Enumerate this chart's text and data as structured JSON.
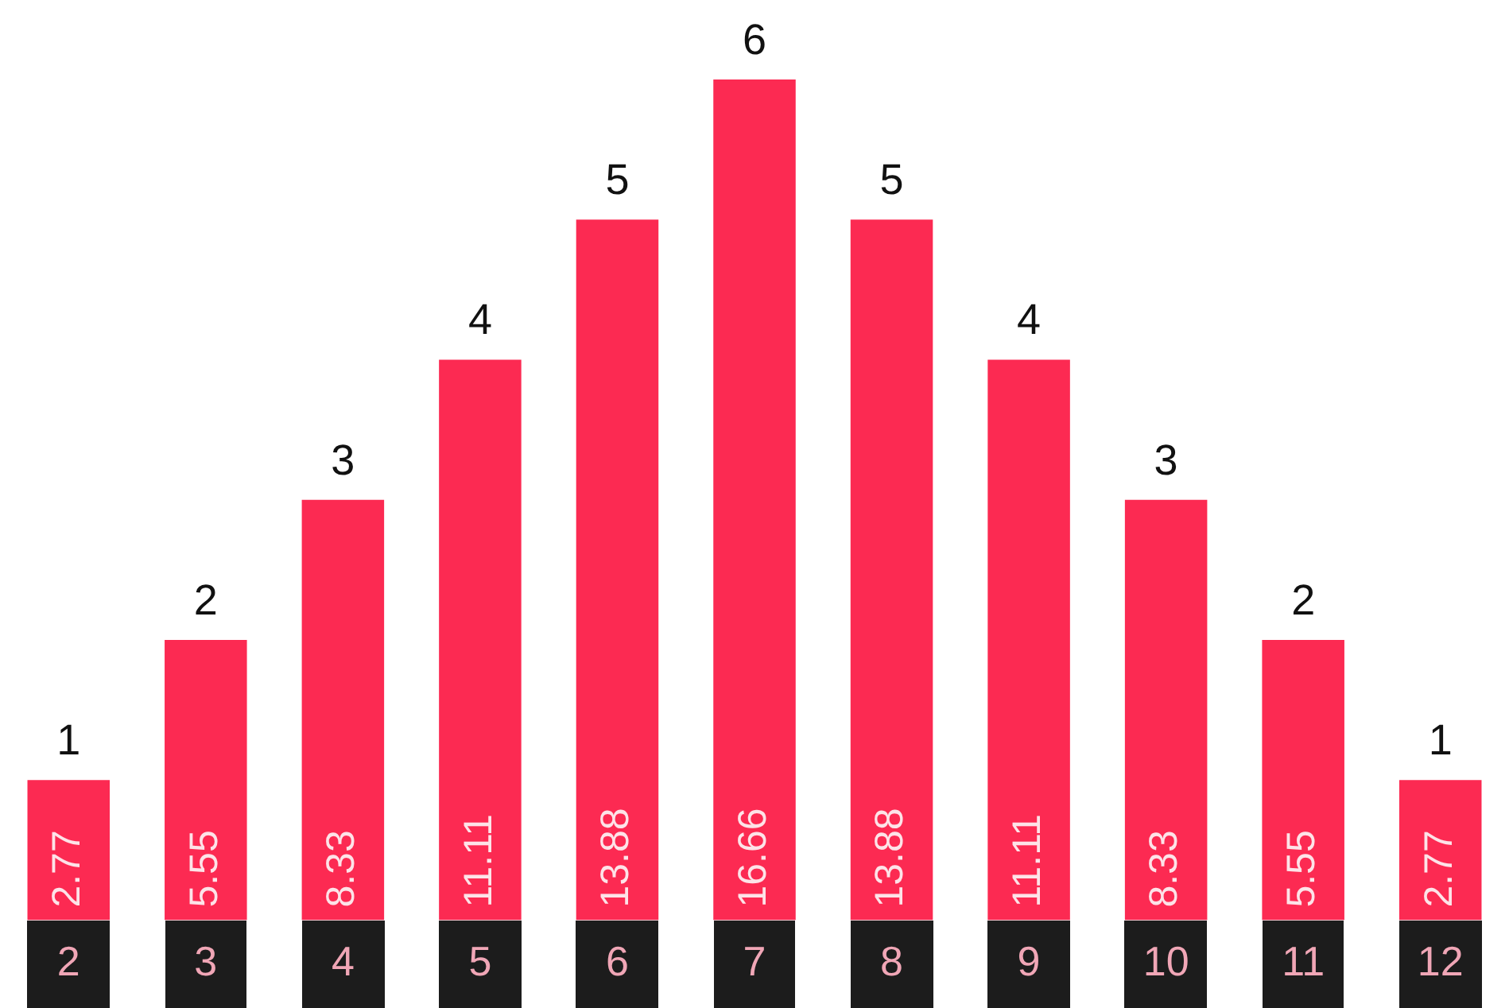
{
  "chart_data": {
    "type": "bar",
    "categories": [
      "2",
      "3",
      "4",
      "5",
      "6",
      "7",
      "8",
      "9",
      "10",
      "11",
      "12"
    ],
    "values": [
      1,
      2,
      3,
      4,
      5,
      6,
      5,
      4,
      3,
      2,
      1
    ],
    "color": "#fc2a52",
    "data_labels": true,
    "tick_labels": "x",
    "grid": false,
    "legend": false,
    "annotations": [
      "2.77",
      "5.55",
      "8.33",
      "11.11",
      "13.88",
      "16.66",
      "13.88",
      "11.11",
      "8.33",
      "5.55",
      "2.77"
    ]
  }
}
